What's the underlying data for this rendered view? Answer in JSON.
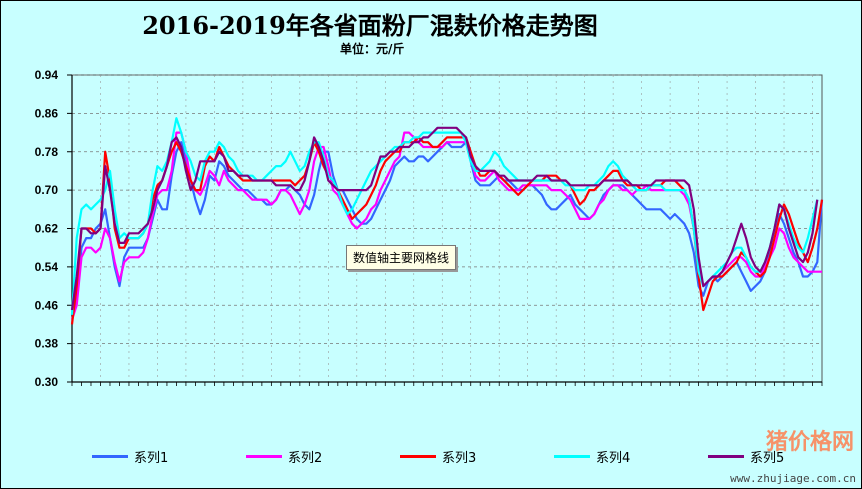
{
  "header": {
    "title": "2016-2019年各省面粉厂混麸价格走势图",
    "subtitle": "单位：元/斤"
  },
  "tooltip": "数值轴主要网格线",
  "watermark": {
    "site": "www.zhujiage.com.cn",
    "brand": "猪价格网"
  },
  "colors": {
    "background": "#c8ffff",
    "plot": "#c8ffff",
    "grid": "#888888",
    "series": [
      "#3366ff",
      "#ff00ff",
      "#ff0000",
      "#00ffff",
      "#800080"
    ]
  },
  "chart_data": {
    "type": "line",
    "title": "2016-2019年各省面粉厂混麸价格走势图",
    "ylabel": "单位：元/斤",
    "ylim": [
      0.3,
      0.94
    ],
    "yticks": [
      "0.94",
      "0.86",
      "0.78",
      "0.70",
      "0.62",
      "0.54",
      "0.46",
      "0.38",
      "0.30"
    ],
    "xtick_labels_note": "x-axis tick labels are illegible in the screenshot",
    "grid": true,
    "legend_position": "bottom",
    "series": [
      {
        "name": "系列1",
        "values": [
          0.44,
          0.47,
          0.58,
          0.6,
          0.6,
          0.62,
          0.63,
          0.66,
          0.6,
          0.54,
          0.5,
          0.56,
          0.58,
          0.58,
          0.58,
          0.58,
          0.6,
          0.64,
          0.68,
          0.66,
          0.66,
          0.73,
          0.78,
          0.8,
          0.76,
          0.72,
          0.68,
          0.65,
          0.68,
          0.73,
          0.72,
          0.76,
          0.75,
          0.73,
          0.72,
          0.71,
          0.7,
          0.7,
          0.69,
          0.68,
          0.68,
          0.67,
          0.67,
          0.68,
          0.7,
          0.7,
          0.71,
          0.7,
          0.69,
          0.67,
          0.66,
          0.69,
          0.74,
          0.78,
          0.78,
          0.73,
          0.7,
          0.7,
          0.68,
          0.66,
          0.64,
          0.63,
          0.63,
          0.64,
          0.66,
          0.68,
          0.7,
          0.72,
          0.75,
          0.76,
          0.77,
          0.76,
          0.76,
          0.77,
          0.77,
          0.76,
          0.77,
          0.78,
          0.79,
          0.8,
          0.79,
          0.79,
          0.79,
          0.8,
          0.76,
          0.72,
          0.71,
          0.71,
          0.71,
          0.72,
          0.73,
          0.72,
          0.72,
          0.71,
          0.7,
          0.7,
          0.71,
          0.71,
          0.7,
          0.69,
          0.67,
          0.66,
          0.66,
          0.67,
          0.68,
          0.69,
          0.67,
          0.66,
          0.65,
          0.64,
          0.65,
          0.67,
          0.69,
          0.7,
          0.71,
          0.71,
          0.71,
          0.7,
          0.69,
          0.68,
          0.67,
          0.66,
          0.66,
          0.66,
          0.66,
          0.65,
          0.64,
          0.65,
          0.64,
          0.63,
          0.61,
          0.57,
          0.5,
          0.48,
          0.51,
          0.52,
          0.51,
          0.52,
          0.53,
          0.54,
          0.55,
          0.53,
          0.51,
          0.49,
          0.5,
          0.51,
          0.53,
          0.57,
          0.61,
          0.65,
          0.63,
          0.6,
          0.57,
          0.55,
          0.52,
          0.52,
          0.53,
          0.55,
          0.68
        ]
      },
      {
        "name": "系列2",
        "values": [
          0.43,
          0.46,
          0.56,
          0.58,
          0.58,
          0.57,
          0.58,
          0.62,
          0.6,
          0.55,
          0.51,
          0.55,
          0.56,
          0.56,
          0.56,
          0.57,
          0.6,
          0.65,
          0.69,
          0.7,
          0.7,
          0.74,
          0.82,
          0.82,
          0.78,
          0.72,
          0.7,
          0.69,
          0.71,
          0.74,
          0.73,
          0.71,
          0.74,
          0.72,
          0.71,
          0.7,
          0.7,
          0.69,
          0.68,
          0.68,
          0.68,
          0.68,
          0.67,
          0.68,
          0.7,
          0.7,
          0.69,
          0.67,
          0.65,
          0.67,
          0.7,
          0.76,
          0.79,
          0.79,
          0.75,
          0.7,
          0.69,
          0.67,
          0.65,
          0.63,
          0.62,
          0.63,
          0.64,
          0.66,
          0.67,
          0.7,
          0.72,
          0.74,
          0.76,
          0.77,
          0.82,
          0.82,
          0.81,
          0.8,
          0.79,
          0.79,
          0.79,
          0.79,
          0.79,
          0.8,
          0.8,
          0.8,
          0.8,
          0.8,
          0.77,
          0.73,
          0.72,
          0.72,
          0.73,
          0.74,
          0.72,
          0.71,
          0.7,
          0.7,
          0.7,
          0.71,
          0.71,
          0.71,
          0.71,
          0.71,
          0.71,
          0.7,
          0.7,
          0.7,
          0.69,
          0.68,
          0.66,
          0.64,
          0.64,
          0.64,
          0.65,
          0.67,
          0.68,
          0.7,
          0.71,
          0.71,
          0.7,
          0.7,
          0.69,
          0.7,
          0.7,
          0.71,
          0.7,
          0.7,
          0.7,
          0.7,
          0.7,
          0.7,
          0.7,
          0.69,
          0.67,
          0.62,
          0.54,
          0.5,
          0.51,
          0.52,
          0.52,
          0.53,
          0.54,
          0.55,
          0.56,
          0.56,
          0.55,
          0.53,
          0.52,
          0.52,
          0.54,
          0.56,
          0.58,
          0.62,
          0.61,
          0.58,
          0.56,
          0.55,
          0.54,
          0.53,
          0.53,
          0.53,
          0.53
        ]
      },
      {
        "name": "系列3",
        "values": [
          0.42,
          0.5,
          0.62,
          0.62,
          0.62,
          0.61,
          0.62,
          0.78,
          0.72,
          0.62,
          0.58,
          0.58,
          0.6,
          0.6,
          0.6,
          0.61,
          0.63,
          0.68,
          0.71,
          0.72,
          0.75,
          0.78,
          0.8,
          0.78,
          0.75,
          0.72,
          0.7,
          0.7,
          0.75,
          0.77,
          0.76,
          0.79,
          0.77,
          0.75,
          0.74,
          0.73,
          0.72,
          0.72,
          0.72,
          0.72,
          0.72,
          0.72,
          0.72,
          0.72,
          0.72,
          0.72,
          0.72,
          0.71,
          0.72,
          0.73,
          0.76,
          0.8,
          0.78,
          0.75,
          0.73,
          0.72,
          0.7,
          0.68,
          0.66,
          0.64,
          0.65,
          0.66,
          0.67,
          0.69,
          0.71,
          0.74,
          0.76,
          0.77,
          0.78,
          0.78,
          0.8,
          0.8,
          0.8,
          0.81,
          0.8,
          0.8,
          0.79,
          0.79,
          0.8,
          0.81,
          0.81,
          0.81,
          0.81,
          0.81,
          0.78,
          0.75,
          0.73,
          0.73,
          0.74,
          0.74,
          0.73,
          0.72,
          0.71,
          0.7,
          0.69,
          0.7,
          0.71,
          0.72,
          0.72,
          0.72,
          0.73,
          0.73,
          0.73,
          0.72,
          0.72,
          0.71,
          0.69,
          0.67,
          0.68,
          0.7,
          0.7,
          0.71,
          0.72,
          0.73,
          0.74,
          0.74,
          0.72,
          0.71,
          0.71,
          0.71,
          0.7,
          0.7,
          0.71,
          0.71,
          0.71,
          0.72,
          0.72,
          0.72,
          0.71,
          0.7,
          0.68,
          0.62,
          0.52,
          0.45,
          0.48,
          0.51,
          0.52,
          0.52,
          0.53,
          0.54,
          0.55,
          0.57,
          0.56,
          0.54,
          0.53,
          0.52,
          0.53,
          0.56,
          0.6,
          0.64,
          0.67,
          0.65,
          0.62,
          0.59,
          0.57,
          0.55,
          0.58,
          0.62,
          0.68
        ]
      },
      {
        "name": "系列4",
        "values": [
          0.44,
          0.6,
          0.66,
          0.67,
          0.66,
          0.67,
          0.68,
          0.7,
          0.74,
          0.66,
          0.6,
          0.61,
          0.6,
          0.6,
          0.6,
          0.61,
          0.63,
          0.7,
          0.75,
          0.74,
          0.76,
          0.8,
          0.85,
          0.82,
          0.78,
          0.76,
          0.73,
          0.72,
          0.76,
          0.78,
          0.78,
          0.8,
          0.79,
          0.77,
          0.76,
          0.74,
          0.73,
          0.73,
          0.73,
          0.72,
          0.72,
          0.73,
          0.74,
          0.75,
          0.75,
          0.76,
          0.78,
          0.76,
          0.74,
          0.75,
          0.78,
          0.8,
          0.8,
          0.77,
          0.73,
          0.72,
          0.7,
          0.67,
          0.65,
          0.66,
          0.68,
          0.7,
          0.72,
          0.74,
          0.75,
          0.76,
          0.77,
          0.78,
          0.79,
          0.79,
          0.8,
          0.8,
          0.81,
          0.81,
          0.82,
          0.82,
          0.82,
          0.82,
          0.82,
          0.82,
          0.82,
          0.82,
          0.82,
          0.8,
          0.76,
          0.74,
          0.74,
          0.75,
          0.76,
          0.78,
          0.77,
          0.75,
          0.74,
          0.73,
          0.72,
          0.72,
          0.72,
          0.72,
          0.72,
          0.72,
          0.72,
          0.72,
          0.72,
          0.72,
          0.71,
          0.71,
          0.7,
          0.7,
          0.7,
          0.71,
          0.71,
          0.72,
          0.73,
          0.75,
          0.76,
          0.75,
          0.73,
          0.72,
          0.71,
          0.7,
          0.7,
          0.7,
          0.71,
          0.71,
          0.71,
          0.7,
          0.7,
          0.7,
          0.7,
          0.7,
          0.68,
          0.62,
          0.53,
          0.5,
          0.51,
          0.52,
          0.53,
          0.54,
          0.55,
          0.57,
          0.58,
          0.58,
          0.56,
          0.54,
          0.53,
          0.53,
          0.55,
          0.58,
          0.62,
          0.67,
          0.66,
          0.63,
          0.6,
          0.58,
          0.57,
          0.6,
          0.64,
          0.68
        ]
      },
      {
        "name": "系列5",
        "values": [
          0.45,
          0.52,
          0.62,
          0.62,
          0.61,
          0.61,
          0.62,
          0.75,
          0.7,
          0.63,
          0.59,
          0.59,
          0.61,
          0.61,
          0.61,
          0.62,
          0.63,
          0.66,
          0.7,
          0.72,
          0.75,
          0.8,
          0.81,
          0.79,
          0.74,
          0.7,
          0.72,
          0.76,
          0.76,
          0.76,
          0.76,
          0.78,
          0.77,
          0.74,
          0.74,
          0.73,
          0.73,
          0.73,
          0.72,
          0.72,
          0.72,
          0.72,
          0.72,
          0.71,
          0.71,
          0.71,
          0.71,
          0.7,
          0.7,
          0.72,
          0.76,
          0.81,
          0.79,
          0.76,
          0.72,
          0.71,
          0.7,
          0.7,
          0.7,
          0.7,
          0.7,
          0.7,
          0.7,
          0.71,
          0.74,
          0.77,
          0.77,
          0.78,
          0.78,
          0.79,
          0.79,
          0.79,
          0.8,
          0.8,
          0.81,
          0.81,
          0.82,
          0.83,
          0.83,
          0.83,
          0.83,
          0.83,
          0.82,
          0.81,
          0.77,
          0.75,
          0.74,
          0.74,
          0.74,
          0.74,
          0.73,
          0.73,
          0.72,
          0.72,
          0.72,
          0.72,
          0.72,
          0.72,
          0.73,
          0.73,
          0.73,
          0.72,
          0.72,
          0.72,
          0.72,
          0.71,
          0.71,
          0.71,
          0.71,
          0.71,
          0.71,
          0.71,
          0.72,
          0.72,
          0.72,
          0.72,
          0.72,
          0.72,
          0.71,
          0.71,
          0.71,
          0.71,
          0.71,
          0.72,
          0.72,
          0.72,
          0.72,
          0.72,
          0.72,
          0.72,
          0.71,
          0.66,
          0.56,
          0.5,
          0.51,
          0.52,
          0.52,
          0.53,
          0.55,
          0.57,
          0.6,
          0.63,
          0.6,
          0.56,
          0.54,
          0.53,
          0.55,
          0.58,
          0.62,
          0.67,
          0.66,
          0.62,
          0.59,
          0.56,
          0.55,
          0.57,
          0.61,
          0.68
        ]
      }
    ]
  }
}
